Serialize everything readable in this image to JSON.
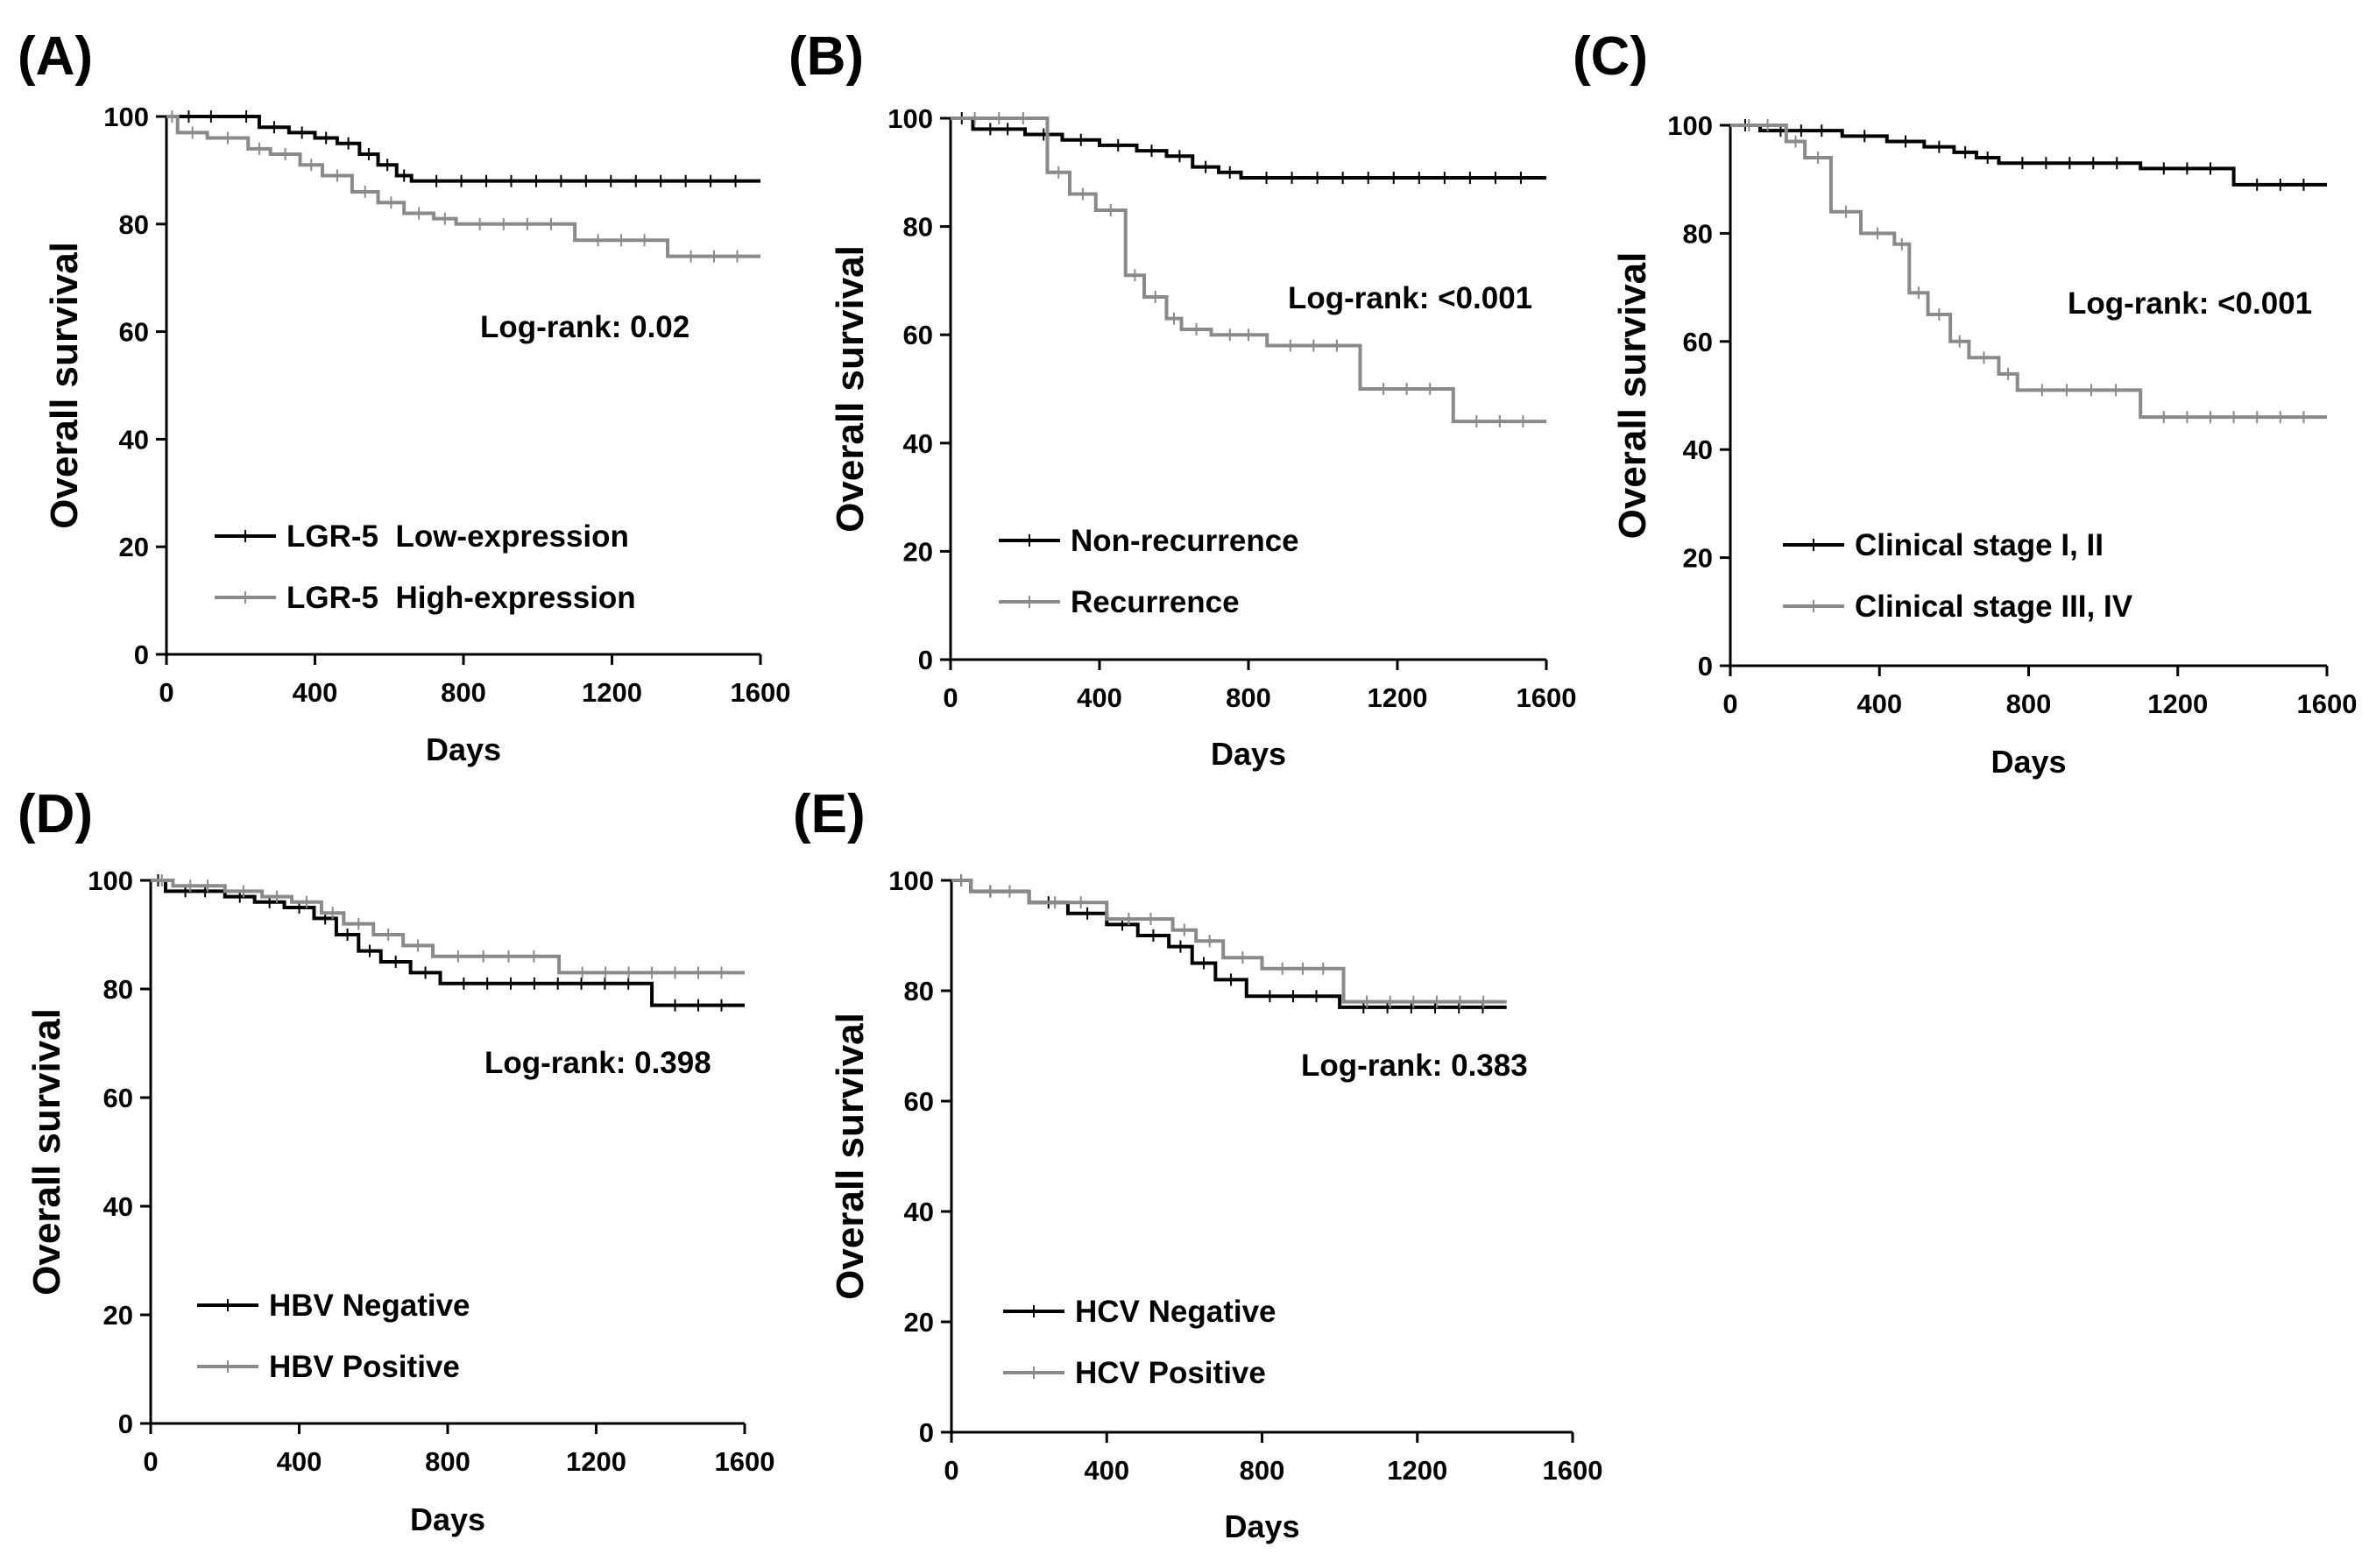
{
  "chart_data": [
    {
      "type": "line",
      "panel_label": "(A)",
      "xlabel": "Days",
      "ylabel": "Overall survival",
      "xlim": [
        0,
        1600
      ],
      "ylim": [
        0,
        100
      ],
      "xticks": [
        "0",
        "400",
        "800",
        "1200",
        "1600"
      ],
      "yticks": [
        "0",
        "20",
        "40",
        "60",
        "80",
        "100"
      ],
      "annotation": "Log-rank: 0.02",
      "series": [
        {
          "name": "LGR-5  Low-expression",
          "color": "#000000",
          "x": [
            0,
            180,
            250,
            330,
            400,
            460,
            520,
            570,
            620,
            660,
            1600
          ],
          "y": [
            100,
            100,
            98,
            97,
            96,
            95,
            93,
            91,
            89,
            88,
            88
          ]
        },
        {
          "name": "LGR-5  High-expression",
          "color": "#8a8a8a",
          "x": [
            0,
            30,
            110,
            220,
            280,
            360,
            420,
            500,
            570,
            640,
            720,
            780,
            1100,
            1350,
            1600
          ],
          "y": [
            100,
            97,
            96,
            94,
            93,
            91,
            89,
            86,
            84,
            82,
            81,
            80,
            77,
            74,
            74
          ]
        }
      ]
    },
    {
      "type": "line",
      "panel_label": "(B)",
      "xlabel": "Days",
      "ylabel": "Overall survival",
      "xlim": [
        0,
        1600
      ],
      "ylim": [
        0,
        100
      ],
      "xticks": [
        "0",
        "400",
        "800",
        "1200",
        "1600"
      ],
      "yticks": [
        "0",
        "20",
        "40",
        "60",
        "80",
        "100"
      ],
      "annotation": "Log-rank: <0.001",
      "series": [
        {
          "name": "Non-recurrence",
          "color": "#000000",
          "x": [
            0,
            60,
            200,
            300,
            400,
            500,
            580,
            650,
            720,
            780,
            1600
          ],
          "y": [
            100,
            98,
            97,
            96,
            95,
            94,
            93,
            91,
            90,
            89,
            89
          ]
        },
        {
          "name": "Recurrence",
          "color": "#8a8a8a",
          "x": [
            0,
            260,
            320,
            390,
            470,
            520,
            580,
            620,
            700,
            850,
            1100,
            1350,
            1600
          ],
          "y": [
            100,
            90,
            86,
            83,
            71,
            67,
            63,
            61,
            60,
            58,
            50,
            44,
            44
          ]
        }
      ]
    },
    {
      "type": "line",
      "panel_label": "(C)",
      "xlabel": "Days",
      "ylabel": "Overall survival",
      "xlim": [
        0,
        1600
      ],
      "ylim": [
        0,
        100
      ],
      "xticks": [
        "0",
        "400",
        "800",
        "1200",
        "1600"
      ],
      "yticks": [
        "0",
        "20",
        "40",
        "60",
        "80",
        "100"
      ],
      "annotation": "Log-rank: <0.001",
      "series": [
        {
          "name": "Clinical stage I, II",
          "color": "#000000",
          "x": [
            0,
            80,
            300,
            420,
            520,
            600,
            660,
            720,
            1100,
            1350,
            1600
          ],
          "y": [
            100,
            99,
            98,
            97,
            96,
            95,
            94,
            93,
            92,
            89,
            89
          ]
        },
        {
          "name": "Clinical stage III, IV",
          "color": "#8a8a8a",
          "x": [
            0,
            150,
            200,
            270,
            350,
            440,
            480,
            530,
            590,
            640,
            720,
            770,
            1100,
            1600
          ],
          "y": [
            100,
            97,
            94,
            84,
            80,
            78,
            69,
            65,
            60,
            57,
            54,
            51,
            46,
            46
          ]
        }
      ]
    },
    {
      "type": "line",
      "panel_label": "(D)",
      "xlabel": "Days",
      "ylabel": "Overall survival",
      "xlim": [
        0,
        1600
      ],
      "ylim": [
        0,
        100
      ],
      "xticks": [
        "0",
        "400",
        "800",
        "1200",
        "1600"
      ],
      "yticks": [
        "0",
        "20",
        "40",
        "60",
        "80",
        "100"
      ],
      "annotation": "Log-rank: 0.398",
      "series": [
        {
          "name": "HBV Negative",
          "color": "#000000",
          "x": [
            0,
            40,
            200,
            280,
            360,
            440,
            500,
            560,
            620,
            700,
            780,
            1350,
            1600
          ],
          "y": [
            100,
            98,
            97,
            96,
            95,
            93,
            90,
            87,
            85,
            83,
            81,
            77,
            77
          ]
        },
        {
          "name": "HBV Positive",
          "color": "#8a8a8a",
          "x": [
            0,
            60,
            200,
            300,
            380,
            460,
            520,
            600,
            680,
            760,
            1100,
            1600
          ],
          "y": [
            100,
            99,
            98,
            97,
            96,
            94,
            92,
            90,
            88,
            86,
            83,
            83
          ]
        }
      ]
    },
    {
      "type": "line",
      "panel_label": "(E)",
      "xlabel": "Days",
      "ylabel": "Overall survival",
      "xlim": [
        0,
        1600
      ],
      "ylim": [
        0,
        100
      ],
      "xticks": [
        "0",
        "400",
        "800",
        "1200",
        "1600"
      ],
      "yticks": [
        "0",
        "20",
        "40",
        "60",
        "80",
        "100"
      ],
      "annotation": "Log-rank: 0.383",
      "series": [
        {
          "name": "HCV Negative",
          "color": "#000000",
          "x": [
            0,
            50,
            200,
            300,
            400,
            480,
            560,
            620,
            680,
            760,
            1000,
            1430
          ],
          "y": [
            100,
            98,
            96,
            94,
            92,
            90,
            88,
            85,
            82,
            79,
            77,
            77
          ]
        },
        {
          "name": "HCV Positive",
          "color": "#8a8a8a",
          "x": [
            0,
            50,
            200,
            400,
            570,
            630,
            700,
            800,
            1010,
            1430
          ],
          "y": [
            100,
            98,
            96,
            93,
            91,
            89,
            86,
            84,
            78,
            78
          ]
        }
      ]
    }
  ]
}
